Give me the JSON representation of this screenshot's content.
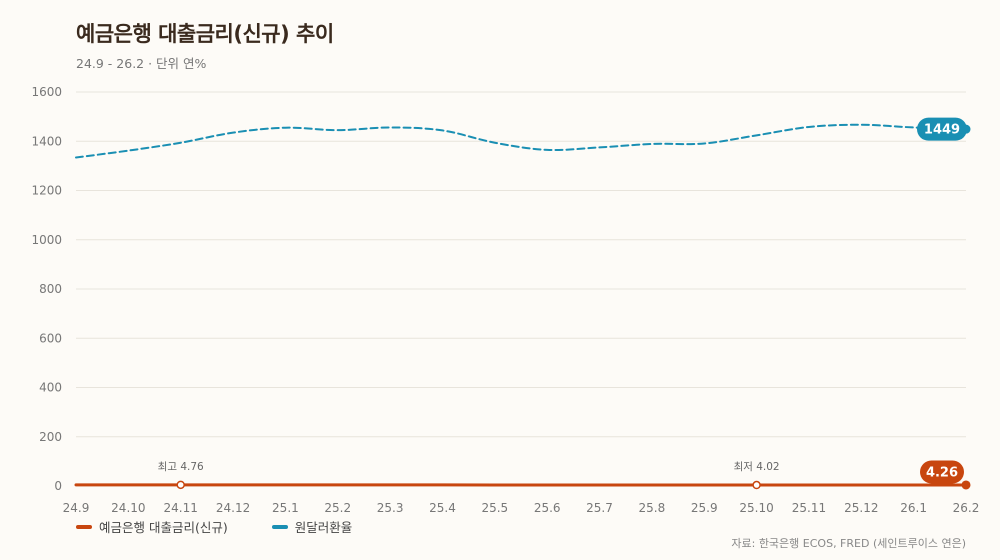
{
  "chart_data": {
    "type": "line",
    "title": "예금은행 대출금리(신규) 추이",
    "subtitle": "24.9 - 26.2 · 단위 연%",
    "categories": [
      "24.9",
      "24.10",
      "24.11",
      "24.12",
      "25.1",
      "25.2",
      "25.3",
      "25.4",
      "25.5",
      "25.6",
      "25.7",
      "25.8",
      "25.9",
      "25.10",
      "25.11",
      "25.12",
      "26.1",
      "26.2"
    ],
    "ylim": [
      0,
      1600
    ],
    "yticks": [
      0,
      200,
      400,
      600,
      800,
      1000,
      1200,
      1400,
      1600
    ],
    "grid": true,
    "legend_position": "bottom-left",
    "series": [
      {
        "name": "예금은행 대출금리(신규)",
        "color": "#c8460f",
        "style": "solid",
        "values": [
          4.6,
          4.7,
          4.76,
          4.7,
          4.65,
          4.6,
          4.5,
          4.4,
          4.3,
          4.2,
          4.15,
          4.1,
          4.05,
          4.02,
          4.1,
          4.15,
          4.2,
          4.26
        ]
      },
      {
        "name": "원달러환율",
        "color": "#1a8fb3",
        "style": "dashed",
        "values": [
          1334,
          1362,
          1394,
          1435,
          1455,
          1445,
          1456,
          1444,
          1394,
          1365,
          1375,
          1389,
          1391,
          1424,
          1458,
          1467,
          1456,
          1449
        ]
      }
    ],
    "annotations": [
      {
        "series": 0,
        "index": 2,
        "text": "최고 4.76"
      },
      {
        "series": 0,
        "index": 13,
        "text": "최저 4.02"
      }
    ],
    "end_labels": [
      "4.26",
      "1449"
    ]
  },
  "source": "자료: 한국은행 ECOS, FRED (세인트루이스 연은)"
}
